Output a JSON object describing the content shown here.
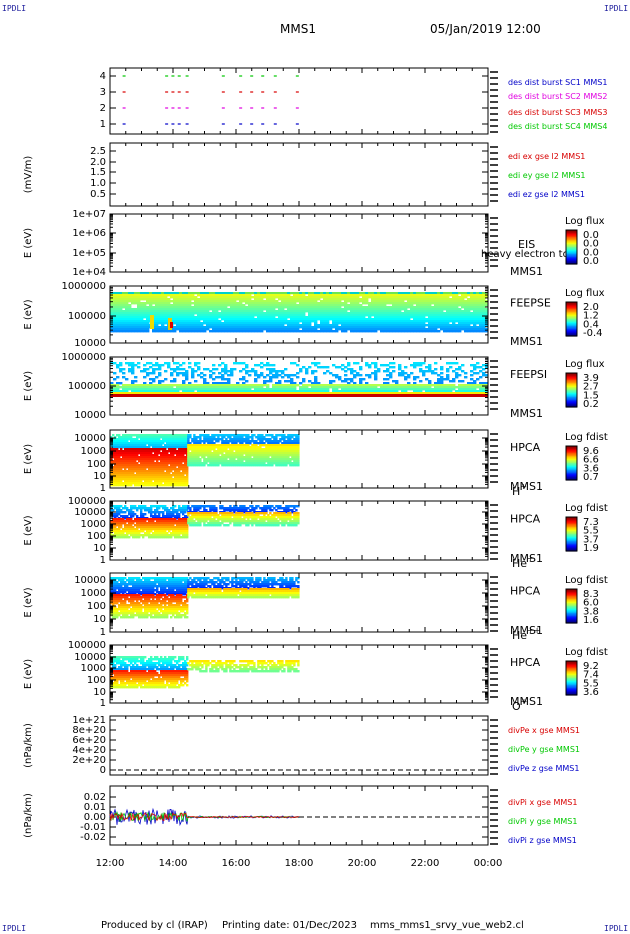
{
  "corner_label": "IPDLI",
  "header": {
    "spacecraft": "MMS1",
    "datetime": "05/Jan/2019 12:00"
  },
  "footer": {
    "produced": "Produced by cl (IRAP)",
    "printing": "Printing date: 01/Dec/2023",
    "filename": "mms_mms1_srvy_vue_web2.cl"
  },
  "colors": {
    "red": "#d80000",
    "green": "#00c800",
    "blue": "#0000c8",
    "magenta": "#e000e0"
  },
  "chart_data": {
    "type": "heatmap",
    "x_axis": {
      "ticks": [
        "12:00",
        "14:00",
        "16:00",
        "18:00",
        "20:00",
        "22:00",
        "00:00"
      ],
      "range_hours": [
        12,
        24
      ]
    },
    "panels": [
      {
        "id": "burst",
        "ylabel": "",
        "yticks": [
          "4",
          "3",
          "2",
          "1"
        ],
        "legend": [
          {
            "text": "des dist burst SC1 MMS1",
            "color": "blue"
          },
          {
            "text": "des dist burst SC2 MMS2",
            "color": "magenta"
          },
          {
            "text": "des dist burst SC3 MMS3",
            "color": "red"
          },
          {
            "text": "des dist burst SC4 MMS4",
            "color": "green"
          }
        ],
        "burst_times_hours": [
          12.4,
          13.75,
          13.95,
          14.15,
          14.4,
          15.55,
          16.1,
          16.45,
          16.8,
          17.2,
          17.9
        ]
      },
      {
        "id": "edi",
        "ylabel": "(mV/m)",
        "yticks": [
          "2.5",
          "2.0",
          "1.5",
          "1.0",
          "0.5"
        ],
        "legend": [
          {
            "text": "edi ex gse l2 MMS1",
            "color": "red"
          },
          {
            "text": "edi ey gse l2 MMS1",
            "color": "green"
          },
          {
            "text": "edi ez gse l2 MMS1",
            "color": "blue"
          }
        ]
      },
      {
        "id": "eis",
        "ylabel": "E (eV)",
        "yticks": [
          "1e+07",
          "1e+06",
          "1e+05",
          "1e+04"
        ],
        "instrument": [
          "EIS",
          "MMS1"
        ],
        "extra_label": "heavy electron to",
        "colorbar": {
          "title": "Log flux",
          "ticks": [
            "0.0",
            "0.0",
            "0.0",
            "0.0"
          ]
        }
      },
      {
        "id": "feepse",
        "ylabel": "E (eV)",
        "yticks": [
          "1000000",
          "100000",
          "10000"
        ],
        "instrument": [
          "FEEPSE",
          "MMS1"
        ],
        "colorbar": {
          "title": "Log flux",
          "ticks": [
            "2.0",
            "1.2",
            "0.4",
            "-0.4"
          ]
        }
      },
      {
        "id": "feepsi",
        "ylabel": "E (eV)",
        "yticks": [
          "1000000",
          "100000",
          "10000"
        ],
        "instrument": [
          "FEEPSI",
          "MMS1"
        ],
        "colorbar": {
          "title": "Log flux",
          "ticks": [
            "3.9",
            "2.7",
            "1.5",
            "0.2"
          ]
        }
      },
      {
        "id": "hpca_h",
        "ylabel": "E (eV)",
        "yticks": [
          "10000",
          "1000",
          "100",
          "10",
          "1"
        ],
        "instrument": [
          "HPCA",
          "MMS1"
        ],
        "species": "H",
        "charge": "+",
        "colorbar": {
          "title": "Log fdist",
          "ticks": [
            "9.6",
            "6.6",
            "3.6",
            "0.7"
          ]
        }
      },
      {
        "id": "hpca_he",
        "ylabel": "E (eV)",
        "yticks": [
          "100000",
          "10000",
          "1000",
          "100",
          "10",
          "1"
        ],
        "instrument": [
          "HPCA",
          "MMS1"
        ],
        "species": "He",
        "charge": "+",
        "colorbar": {
          "title": "Log fdist",
          "ticks": [
            "7.3",
            "5.5",
            "3.7",
            "1.9"
          ]
        }
      },
      {
        "id": "hpca_hepp",
        "ylabel": "E (eV)",
        "yticks": [
          "10000",
          "1000",
          "100",
          "10",
          "1"
        ],
        "instrument": [
          "HPCA",
          "MMS1"
        ],
        "species": "He",
        "charge": "++",
        "colorbar": {
          "title": "Log fdist",
          "ticks": [
            "8.3",
            "6.0",
            "3.8",
            "1.6"
          ]
        }
      },
      {
        "id": "hpca_o",
        "ylabel": "E (eV)",
        "yticks": [
          "100000",
          "10000",
          "1000",
          "100",
          "10",
          "1"
        ],
        "instrument": [
          "HPCA",
          "MMS1"
        ],
        "species": "O",
        "charge": "+",
        "colorbar": {
          "title": "Log fdist",
          "ticks": [
            "9.2",
            "7.4",
            "5.5",
            "3.6"
          ]
        }
      },
      {
        "id": "divpe",
        "ylabel": "(nPa/km)",
        "yticks": [
          "1e+21",
          "8e+20",
          "6e+20",
          "4e+20",
          "2e+20",
          "0"
        ],
        "legend": [
          {
            "text": "divPe x gse MMS1",
            "color": "red"
          },
          {
            "text": "divPe y gse MMS1",
            "color": "green"
          },
          {
            "text": "divPe z gse MMS1",
            "color": "blue"
          }
        ]
      },
      {
        "id": "divpi",
        "ylabel": "(nPa/km)",
        "yticks": [
          "0.02",
          "0.01",
          "0.00",
          "-0.01",
          "-0.02"
        ],
        "legend": [
          {
            "text": "divPi x gse MMS1",
            "color": "red"
          },
          {
            "text": "divPi y gse MMS1",
            "color": "green"
          },
          {
            "text": "divPi z gse MMS1",
            "color": "blue"
          }
        ]
      }
    ]
  }
}
